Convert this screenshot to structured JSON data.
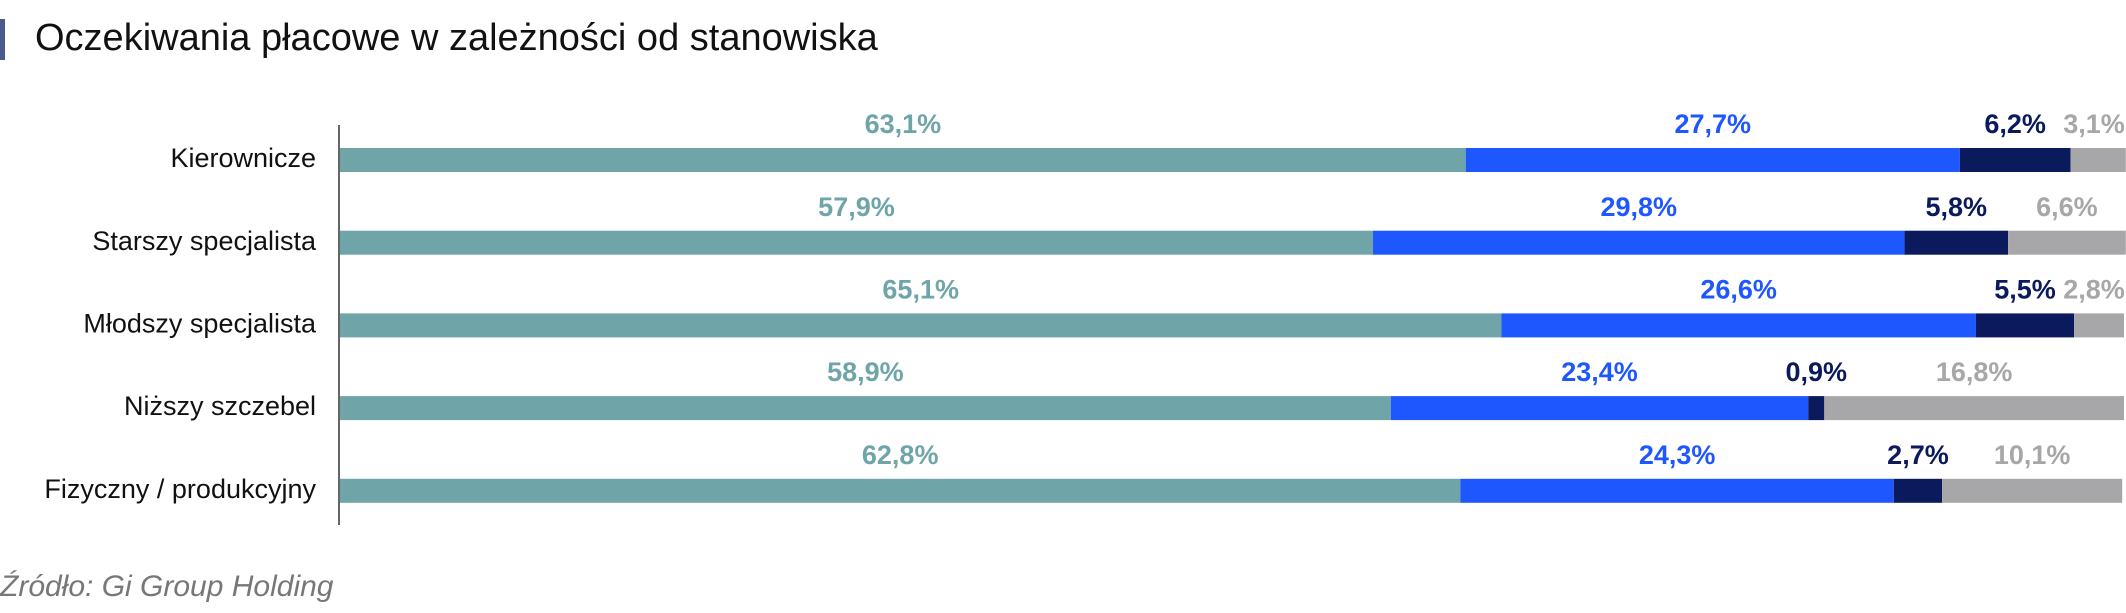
{
  "chart_data": {
    "type": "stacked-bar-horizontal",
    "title": "Oczekiwania płacowe w zależności od stanowiska",
    "source": "Źródło: Gi Group Holding",
    "categories": [
      "Kierownicze",
      "Starszy specjalista",
      "Młodszy specjalista",
      "Niższy szczebel",
      "Fizyczny / produkcyjny"
    ],
    "series": [
      {
        "color": "#6fa5a8",
        "values": [
          63.1,
          57.9,
          65.1,
          58.9,
          62.8
        ],
        "value_labels": [
          "63,1%",
          "57,9%",
          "65,1%",
          "58,9%",
          "62,8%"
        ]
      },
      {
        "color": "#1f57ff",
        "values": [
          27.7,
          29.8,
          26.6,
          23.4,
          24.3
        ],
        "value_labels": [
          "27,7%",
          "29,8%",
          "26,6%",
          "23,4%",
          "24,3%"
        ]
      },
      {
        "color": "#0a1a5c",
        "values": [
          6.2,
          5.8,
          5.5,
          0.9,
          2.7
        ],
        "value_labels": [
          "6,2%",
          "5,8%",
          "5,5%",
          "0,9%",
          "2,7%"
        ]
      },
      {
        "color": "#a7a7a9",
        "values": [
          3.1,
          6.6,
          2.8,
          16.8,
          10.1
        ],
        "value_labels": [
          "3,1%",
          "6,6%",
          "2,8%",
          "16,8%",
          "10,1%"
        ]
      }
    ],
    "xlim": [
      0,
      100
    ]
  }
}
